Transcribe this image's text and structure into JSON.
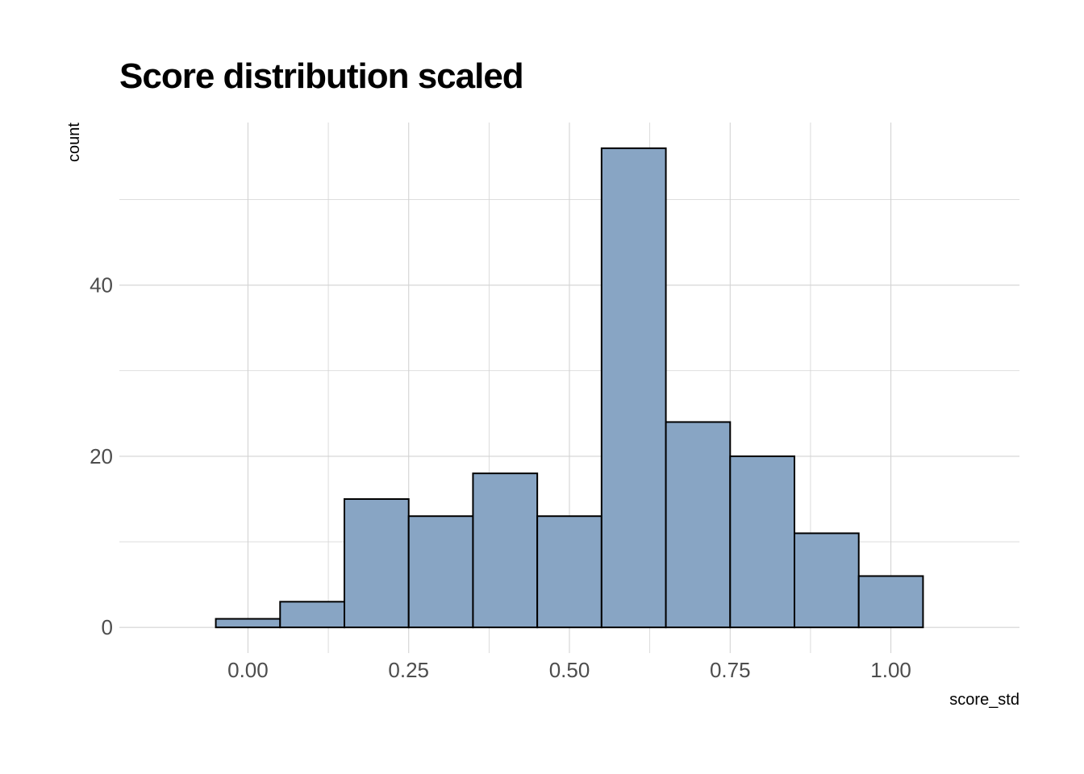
{
  "chart_data": {
    "type": "bar",
    "title": "Score distribution scaled",
    "xlabel": "score_std",
    "ylabel": "count",
    "bin_width": 0.1,
    "bins": [
      {
        "x0": -0.05,
        "x1": 0.05,
        "count": 1
      },
      {
        "x0": 0.05,
        "x1": 0.15,
        "count": 3
      },
      {
        "x0": 0.15,
        "x1": 0.25,
        "count": 15
      },
      {
        "x0": 0.25,
        "x1": 0.35,
        "count": 13
      },
      {
        "x0": 0.35,
        "x1": 0.45,
        "count": 18
      },
      {
        "x0": 0.45,
        "x1": 0.55,
        "count": 13
      },
      {
        "x0": 0.55,
        "x1": 0.65,
        "count": 56
      },
      {
        "x0": 0.65,
        "x1": 0.75,
        "count": 24
      },
      {
        "x0": 0.75,
        "x1": 0.85,
        "count": 20
      },
      {
        "x0": 0.85,
        "x1": 0.95,
        "count": 11
      },
      {
        "x0": 0.95,
        "x1": 1.05,
        "count": 6
      }
    ],
    "xlim": [
      -0.2,
      1.2
    ],
    "ylim": [
      -3,
      59
    ],
    "x_ticks": [
      0.0,
      0.25,
      0.5,
      0.75,
      1.0
    ],
    "x_tick_labels": [
      "0.00",
      "0.25",
      "0.50",
      "0.75",
      "1.00"
    ],
    "x_minor_ticks": [
      0.125,
      0.375,
      0.625,
      0.875
    ],
    "y_ticks": [
      0,
      20,
      40
    ],
    "y_tick_labels": [
      "0",
      "20",
      "40"
    ],
    "y_minor_ticks": [
      10,
      30,
      50
    ],
    "grid": true,
    "legend": "none",
    "colors": {
      "bar_fill": "#88a5c4",
      "bar_stroke": "#000000",
      "grid": "#d3d3d3",
      "tick_text": "#4d4d4d"
    }
  }
}
